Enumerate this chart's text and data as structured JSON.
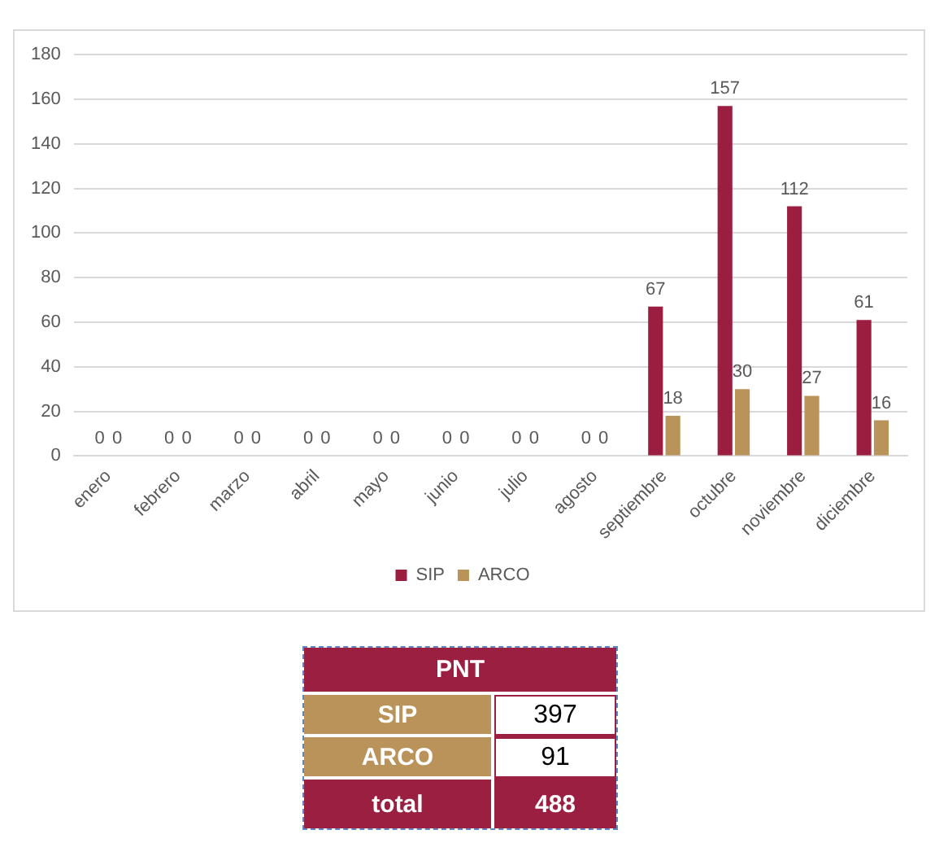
{
  "chart_data": [
    {
      "type": "bar",
      "categories": [
        "enero",
        "febrero",
        "marzo",
        "abril",
        "mayo",
        "junio",
        "julio",
        "agosto",
        "septiembre",
        "octubre",
        "noviembre",
        "diciembre"
      ],
      "series": [
        {
          "name": "SIP",
          "color": "#9b1d3f",
          "values": [
            0,
            0,
            0,
            0,
            0,
            0,
            0,
            0,
            67,
            157,
            112,
            61
          ]
        },
        {
          "name": "ARCO",
          "color": "#b9935a",
          "values": [
            0,
            0,
            0,
            0,
            0,
            0,
            0,
            0,
            18,
            30,
            27,
            16
          ]
        }
      ],
      "ylim": [
        0,
        180
      ],
      "yticks": [
        0,
        20,
        40,
        60,
        80,
        100,
        120,
        140,
        160,
        180
      ],
      "grid": "y",
      "legend": "bottom",
      "data_labels": true
    },
    {
      "type": "other",
      "title": "PNT",
      "color": "#9b1f40",
      "categories": [
        "SIP",
        "ARCO",
        "total"
      ],
      "values": [
        397,
        91,
        488
      ],
      "data_labels": true
    }
  ]
}
